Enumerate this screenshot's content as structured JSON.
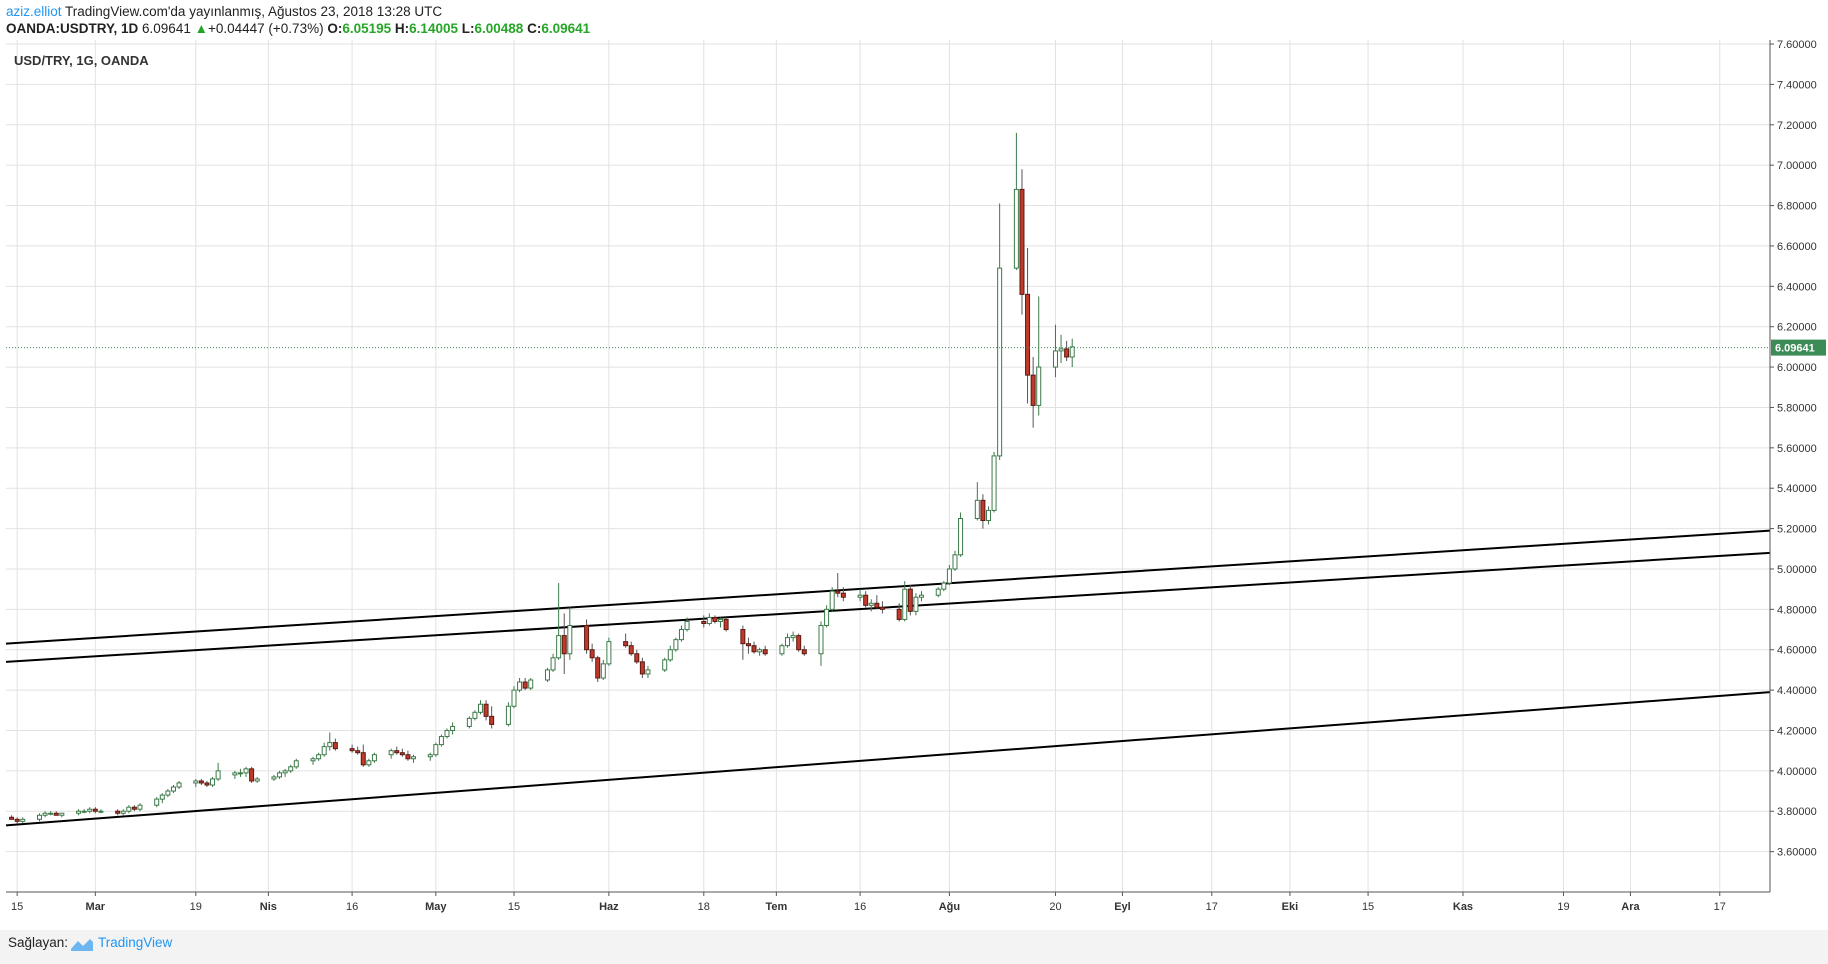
{
  "header": {
    "author": "aziz.elliot",
    "published": "TradingView.com'da yayınlanmış, Ağustos 23, 2018 13:28 UTC",
    "symbol": "OANDA:USDTRY, 1D",
    "last": "6.09641",
    "change": "+0.04447 (+0.73%)",
    "o_label": "O:",
    "o": "6.05195",
    "h_label": "H:",
    "h": "6.14005",
    "l_label": "L:",
    "l": "6.00488",
    "c_label": "C:",
    "c": "6.09641"
  },
  "footer": {
    "label": "Sağlayan:",
    "brand": "TradingView"
  },
  "colors": {
    "up_border": "#3d7a4a",
    "down_fill": "#c0392b",
    "price_tag": "#3d8b57",
    "grid": "#e2e2e2"
  },
  "chart_data": {
    "type": "candlestick",
    "title": "USD/TRY, 1G, OANDA",
    "ylim": [
      3.4,
      7.62
    ],
    "y_ticks": [
      "3.60000",
      "3.80000",
      "4.00000",
      "4.20000",
      "4.40000",
      "4.60000",
      "4.80000",
      "5.00000",
      "5.20000",
      "5.40000",
      "5.60000",
      "5.80000",
      "6.00000",
      "6.20000",
      "6.40000",
      "6.60000",
      "6.80000",
      "7.00000",
      "7.20000",
      "7.40000",
      "7.60000"
    ],
    "x_ticks": [
      {
        "label": "15",
        "date": "2018-02-15",
        "bold": false
      },
      {
        "label": "Mar",
        "date": "2018-03-01",
        "bold": true
      },
      {
        "label": "19",
        "date": "2018-03-19",
        "bold": false
      },
      {
        "label": "Nis",
        "date": "2018-04-01",
        "bold": true
      },
      {
        "label": "16",
        "date": "2018-04-16",
        "bold": false
      },
      {
        "label": "May",
        "date": "2018-05-01",
        "bold": true
      },
      {
        "label": "15",
        "date": "2018-05-15",
        "bold": false
      },
      {
        "label": "Haz",
        "date": "2018-06-01",
        "bold": true
      },
      {
        "label": "18",
        "date": "2018-06-18",
        "bold": false
      },
      {
        "label": "Tem",
        "date": "2018-07-01",
        "bold": true
      },
      {
        "label": "16",
        "date": "2018-07-16",
        "bold": false
      },
      {
        "label": "Ağu",
        "date": "2018-08-01",
        "bold": true
      },
      {
        "label": "20",
        "date": "2018-08-20",
        "bold": false
      },
      {
        "label": "Eyl",
        "date": "2018-09-01",
        "bold": true
      },
      {
        "label": "17",
        "date": "2018-09-17",
        "bold": false
      },
      {
        "label": "Eki",
        "date": "2018-10-01",
        "bold": true
      },
      {
        "label": "15",
        "date": "2018-10-15",
        "bold": false
      },
      {
        "label": "Kas",
        "date": "2018-11-01",
        "bold": true
      },
      {
        "label": "19",
        "date": "2018-11-19",
        "bold": false
      },
      {
        "label": "Ara",
        "date": "2018-12-01",
        "bold": true
      },
      {
        "label": "17",
        "date": "2018-12-17",
        "bold": false
      }
    ],
    "last_price": "6.09641",
    "candles": [
      [
        "2018-02-14",
        3.77,
        3.78,
        3.76,
        3.76
      ],
      [
        "2018-02-15",
        3.76,
        3.77,
        3.74,
        3.75
      ],
      [
        "2018-02-16",
        3.75,
        3.77,
        3.74,
        3.76
      ],
      [
        "2018-02-19",
        3.76,
        3.79,
        3.75,
        3.78
      ],
      [
        "2018-02-20",
        3.78,
        3.8,
        3.77,
        3.79
      ],
      [
        "2018-02-21",
        3.79,
        3.8,
        3.78,
        3.79
      ],
      [
        "2018-02-22",
        3.79,
        3.8,
        3.78,
        3.78
      ],
      [
        "2018-02-23",
        3.78,
        3.79,
        3.77,
        3.79
      ],
      [
        "2018-02-26",
        3.79,
        3.81,
        3.78,
        3.8
      ],
      [
        "2018-02-27",
        3.8,
        3.81,
        3.79,
        3.8
      ],
      [
        "2018-02-28",
        3.8,
        3.82,
        3.79,
        3.81
      ],
      [
        "2018-03-01",
        3.81,
        3.82,
        3.79,
        3.8
      ],
      [
        "2018-03-02",
        3.8,
        3.81,
        3.79,
        3.8
      ],
      [
        "2018-03-05",
        3.8,
        3.81,
        3.78,
        3.79
      ],
      [
        "2018-03-06",
        3.79,
        3.81,
        3.78,
        3.8
      ],
      [
        "2018-03-07",
        3.8,
        3.83,
        3.79,
        3.82
      ],
      [
        "2018-03-08",
        3.82,
        3.83,
        3.8,
        3.81
      ],
      [
        "2018-03-09",
        3.81,
        3.84,
        3.8,
        3.83
      ],
      [
        "2018-03-12",
        3.83,
        3.87,
        3.82,
        3.86
      ],
      [
        "2018-03-13",
        3.86,
        3.89,
        3.84,
        3.88
      ],
      [
        "2018-03-14",
        3.88,
        3.91,
        3.87,
        3.9
      ],
      [
        "2018-03-15",
        3.9,
        3.93,
        3.89,
        3.92
      ],
      [
        "2018-03-16",
        3.92,
        3.95,
        3.91,
        3.94
      ],
      [
        "2018-03-19",
        3.94,
        3.96,
        3.92,
        3.95
      ],
      [
        "2018-03-20",
        3.95,
        3.96,
        3.93,
        3.94
      ],
      [
        "2018-03-21",
        3.94,
        3.95,
        3.92,
        3.93
      ],
      [
        "2018-03-22",
        3.93,
        3.97,
        3.92,
        3.96
      ],
      [
        "2018-03-23",
        3.96,
        4.04,
        3.95,
        4.0
      ],
      [
        "2018-03-26",
        3.98,
        4.0,
        3.96,
        3.99
      ],
      [
        "2018-03-27",
        3.99,
        4.01,
        3.97,
        3.99
      ],
      [
        "2018-03-28",
        3.99,
        4.02,
        3.97,
        4.01
      ],
      [
        "2018-03-29",
        4.01,
        4.02,
        3.94,
        3.95
      ],
      [
        "2018-03-30",
        3.95,
        3.97,
        3.94,
        3.96
      ],
      [
        "2018-04-02",
        3.96,
        3.98,
        3.95,
        3.97
      ],
      [
        "2018-04-03",
        3.97,
        4.0,
        3.96,
        3.99
      ],
      [
        "2018-04-04",
        3.99,
        4.01,
        3.97,
        4.0
      ],
      [
        "2018-04-05",
        4.0,
        4.03,
        3.99,
        4.02
      ],
      [
        "2018-04-06",
        4.02,
        4.06,
        4.01,
        4.05
      ],
      [
        "2018-04-09",
        4.05,
        4.07,
        4.03,
        4.06
      ],
      [
        "2018-04-10",
        4.06,
        4.09,
        4.05,
        4.08
      ],
      [
        "2018-04-11",
        4.08,
        4.14,
        4.07,
        4.12
      ],
      [
        "2018-04-12",
        4.12,
        4.19,
        4.1,
        4.14
      ],
      [
        "2018-04-13",
        4.14,
        4.16,
        4.1,
        4.11
      ],
      [
        "2018-04-16",
        4.11,
        4.13,
        4.09,
        4.1
      ],
      [
        "2018-04-17",
        4.1,
        4.12,
        4.08,
        4.09
      ],
      [
        "2018-04-18",
        4.09,
        4.13,
        4.02,
        4.03
      ],
      [
        "2018-04-19",
        4.03,
        4.06,
        4.02,
        4.05
      ],
      [
        "2018-04-20",
        4.05,
        4.09,
        4.04,
        4.08
      ],
      [
        "2018-04-23",
        4.08,
        4.11,
        4.06,
        4.1
      ],
      [
        "2018-04-24",
        4.1,
        4.12,
        4.08,
        4.09
      ],
      [
        "2018-04-25",
        4.09,
        4.11,
        4.07,
        4.08
      ],
      [
        "2018-04-26",
        4.08,
        4.1,
        4.05,
        4.06
      ],
      [
        "2018-04-27",
        4.06,
        4.08,
        4.04,
        4.07
      ],
      [
        "2018-04-30",
        4.07,
        4.09,
        4.05,
        4.08
      ],
      [
        "2018-05-01",
        4.08,
        4.14,
        4.07,
        4.13
      ],
      [
        "2018-05-02",
        4.13,
        4.18,
        4.12,
        4.17
      ],
      [
        "2018-05-03",
        4.17,
        4.21,
        4.16,
        4.2
      ],
      [
        "2018-05-04",
        4.2,
        4.24,
        4.18,
        4.22
      ],
      [
        "2018-05-07",
        4.22,
        4.27,
        4.21,
        4.26
      ],
      [
        "2018-05-08",
        4.26,
        4.3,
        4.25,
        4.29
      ],
      [
        "2018-05-09",
        4.29,
        4.35,
        4.28,
        4.33
      ],
      [
        "2018-05-10",
        4.33,
        4.35,
        4.25,
        4.27
      ],
      [
        "2018-05-11",
        4.27,
        4.32,
        4.21,
        4.23
      ],
      [
        "2018-05-14",
        4.23,
        4.34,
        4.22,
        4.32
      ],
      [
        "2018-05-15",
        4.32,
        4.42,
        4.31,
        4.4
      ],
      [
        "2018-05-16",
        4.4,
        4.46,
        4.39,
        4.44
      ],
      [
        "2018-05-17",
        4.44,
        4.46,
        4.4,
        4.41
      ],
      [
        "2018-05-18",
        4.41,
        4.46,
        4.4,
        4.45
      ],
      [
        "2018-05-21",
        4.45,
        4.51,
        4.44,
        4.5
      ],
      [
        "2018-05-22",
        4.5,
        4.58,
        4.49,
        4.56
      ],
      [
        "2018-05-23",
        4.56,
        4.93,
        4.55,
        4.67
      ],
      [
        "2018-05-24",
        4.67,
        4.78,
        4.48,
        4.58
      ],
      [
        "2018-05-25",
        4.58,
        4.81,
        4.55,
        4.72
      ],
      [
        "2018-05-28",
        4.72,
        4.75,
        4.58,
        4.6
      ],
      [
        "2018-05-29",
        4.6,
        4.63,
        4.54,
        4.56
      ],
      [
        "2018-05-30",
        4.56,
        4.57,
        4.44,
        4.46
      ],
      [
        "2018-05-31",
        4.46,
        4.55,
        4.45,
        4.53
      ],
      [
        "2018-06-01",
        4.53,
        4.66,
        4.52,
        4.64
      ],
      [
        "2018-06-04",
        4.64,
        4.68,
        4.61,
        4.62
      ],
      [
        "2018-06-05",
        4.62,
        4.64,
        4.57,
        4.58
      ],
      [
        "2018-06-06",
        4.58,
        4.6,
        4.53,
        4.54
      ],
      [
        "2018-06-07",
        4.54,
        4.56,
        4.46,
        4.48
      ],
      [
        "2018-06-08",
        4.48,
        4.52,
        4.46,
        4.5
      ],
      [
        "2018-06-11",
        4.5,
        4.56,
        4.49,
        4.55
      ],
      [
        "2018-06-12",
        4.55,
        4.62,
        4.54,
        4.6
      ],
      [
        "2018-06-13",
        4.6,
        4.66,
        4.59,
        4.65
      ],
      [
        "2018-06-14",
        4.65,
        4.72,
        4.64,
        4.7
      ],
      [
        "2018-06-15",
        4.7,
        4.76,
        4.69,
        4.74
      ],
      [
        "2018-06-18",
        4.74,
        4.77,
        4.71,
        4.73
      ],
      [
        "2018-06-19",
        4.73,
        4.78,
        4.72,
        4.76
      ],
      [
        "2018-06-20",
        4.76,
        4.77,
        4.73,
        4.74
      ],
      [
        "2018-06-21",
        4.74,
        4.76,
        4.71,
        4.75
      ],
      [
        "2018-06-22",
        4.75,
        4.76,
        4.69,
        4.7
      ],
      [
        "2018-06-25",
        4.7,
        4.72,
        4.55,
        4.63
      ],
      [
        "2018-06-26",
        4.63,
        4.66,
        4.58,
        4.62
      ],
      [
        "2018-06-27",
        4.62,
        4.64,
        4.58,
        4.59
      ],
      [
        "2018-06-28",
        4.59,
        4.61,
        4.57,
        4.6
      ],
      [
        "2018-06-29",
        4.6,
        4.62,
        4.57,
        4.58
      ],
      [
        "2018-07-02",
        4.58,
        4.63,
        4.57,
        4.62
      ],
      [
        "2018-07-03",
        4.62,
        4.68,
        4.61,
        4.66
      ],
      [
        "2018-07-04",
        4.66,
        4.69,
        4.64,
        4.67
      ],
      [
        "2018-07-05",
        4.67,
        4.68,
        4.59,
        4.6
      ],
      [
        "2018-07-06",
        4.6,
        4.62,
        4.57,
        4.58
      ],
      [
        "2018-07-09",
        4.58,
        4.74,
        4.52,
        4.72
      ],
      [
        "2018-07-10",
        4.72,
        4.82,
        4.71,
        4.8
      ],
      [
        "2018-07-11",
        4.8,
        4.91,
        4.79,
        4.89
      ],
      [
        "2018-07-12",
        4.89,
        4.98,
        4.86,
        4.88
      ],
      [
        "2018-07-13",
        4.88,
        4.91,
        4.84,
        4.86
      ],
      [
        "2018-07-16",
        4.86,
        4.9,
        4.84,
        4.87
      ],
      [
        "2018-07-17",
        4.87,
        4.89,
        4.81,
        4.82
      ],
      [
        "2018-07-18",
        4.82,
        4.85,
        4.79,
        4.83
      ],
      [
        "2018-07-19",
        4.83,
        4.87,
        4.8,
        4.81
      ],
      [
        "2018-07-20",
        4.81,
        4.84,
        4.78,
        4.8
      ],
      [
        "2018-07-23",
        4.8,
        4.83,
        4.74,
        4.75
      ],
      [
        "2018-07-24",
        4.75,
        4.94,
        4.74,
        4.9
      ],
      [
        "2018-07-25",
        4.9,
        4.92,
        4.77,
        4.79
      ],
      [
        "2018-07-26",
        4.79,
        4.88,
        4.77,
        4.86
      ],
      [
        "2018-07-27",
        4.86,
        4.89,
        4.84,
        4.87
      ],
      [
        "2018-07-30",
        4.87,
        4.91,
        4.86,
        4.9
      ],
      [
        "2018-07-31",
        4.9,
        4.94,
        4.89,
        4.93
      ],
      [
        "2018-08-01",
        4.93,
        5.02,
        4.92,
        5.0
      ],
      [
        "2018-08-02",
        5.0,
        5.09,
        4.99,
        5.07
      ],
      [
        "2018-08-03",
        5.07,
        5.28,
        5.06,
        5.25
      ],
      [
        "2018-08-06",
        5.25,
        5.43,
        5.24,
        5.34
      ],
      [
        "2018-08-07",
        5.34,
        5.37,
        5.2,
        5.24
      ],
      [
        "2018-08-08",
        5.24,
        5.31,
        5.22,
        5.29
      ],
      [
        "2018-08-09",
        5.29,
        5.58,
        5.28,
        5.56
      ],
      [
        "2018-08-10",
        5.56,
        6.81,
        5.54,
        6.49
      ],
      [
        "2018-08-13",
        6.49,
        7.16,
        6.48,
        6.88
      ],
      [
        "2018-08-14",
        6.88,
        6.98,
        6.26,
        6.36
      ],
      [
        "2018-08-15",
        6.36,
        6.59,
        5.82,
        5.96
      ],
      [
        "2018-08-16",
        5.96,
        6.05,
        5.7,
        5.81
      ],
      [
        "2018-08-17",
        5.81,
        6.35,
        5.76,
        6.0
      ],
      [
        "2018-08-20",
        6.0,
        6.21,
        5.95,
        6.08
      ],
      [
        "2018-08-21",
        6.08,
        6.16,
        6.02,
        6.09
      ],
      [
        "2018-08-22",
        6.09,
        6.13,
        6.03,
        6.05
      ],
      [
        "2018-08-23",
        6.05,
        6.14,
        6.0,
        6.1
      ]
    ],
    "trendlines": [
      {
        "from": {
          "date": "2018-02-13",
          "price": 4.63
        },
        "to": {
          "date": "2018-12-26",
          "price": 5.19
        }
      },
      {
        "from": {
          "date": "2018-02-13",
          "price": 4.54
        },
        "to": {
          "date": "2018-12-26",
          "price": 5.08
        }
      },
      {
        "from": {
          "date": "2018-02-13",
          "price": 3.73
        },
        "to": {
          "date": "2018-12-26",
          "price": 4.39
        }
      }
    ]
  }
}
